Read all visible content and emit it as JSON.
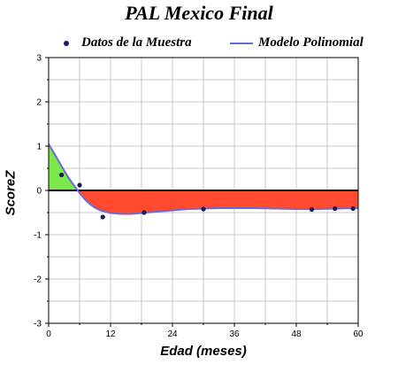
{
  "chart_data": {
    "type": "line",
    "title": "PAL Mexico Final",
    "xlabel": "Edad (meses)",
    "ylabel": "ScoreZ",
    "xlim": [
      0,
      60
    ],
    "ylim": [
      -3,
      3
    ],
    "xticks": [
      0,
      12,
      24,
      36,
      48,
      60
    ],
    "yticks": [
      -3,
      -2,
      -1,
      0,
      1,
      2,
      3
    ],
    "grid": true,
    "legend": "top",
    "series": [
      {
        "name": "Datos de la Muestra",
        "kind": "scatter",
        "color": "#1a1a5e",
        "points": [
          [
            2.5,
            0.35
          ],
          [
            6,
            0.12
          ],
          [
            10.5,
            -0.6
          ],
          [
            18.5,
            -0.5
          ],
          [
            30,
            -0.42
          ],
          [
            51,
            -0.43
          ],
          [
            55.5,
            -0.41
          ],
          [
            59,
            -0.41
          ]
        ]
      },
      {
        "name": "Modelo Polinomial",
        "kind": "line",
        "color": "#6a6ad8",
        "points": [
          [
            0,
            1.05
          ],
          [
            1,
            0.85
          ],
          [
            2,
            0.65
          ],
          [
            3,
            0.45
          ],
          [
            4,
            0.26
          ],
          [
            5,
            0.1
          ],
          [
            6,
            -0.06
          ],
          [
            7,
            -0.2
          ],
          [
            8,
            -0.31
          ],
          [
            9,
            -0.39
          ],
          [
            10,
            -0.45
          ],
          [
            12,
            -0.51
          ],
          [
            14,
            -0.53
          ],
          [
            16,
            -0.53
          ],
          [
            18,
            -0.51
          ],
          [
            20,
            -0.49
          ],
          [
            22,
            -0.47
          ],
          [
            24,
            -0.45
          ],
          [
            27,
            -0.42
          ],
          [
            30,
            -0.41
          ],
          [
            33,
            -0.4
          ],
          [
            36,
            -0.4
          ],
          [
            40,
            -0.4
          ],
          [
            44,
            -0.41
          ],
          [
            48,
            -0.42
          ],
          [
            52,
            -0.42
          ],
          [
            56,
            -0.41
          ],
          [
            60,
            -0.4
          ]
        ]
      }
    ],
    "fill_positive_color": "#7de84b",
    "fill_negative_color": "#ff4a30"
  }
}
